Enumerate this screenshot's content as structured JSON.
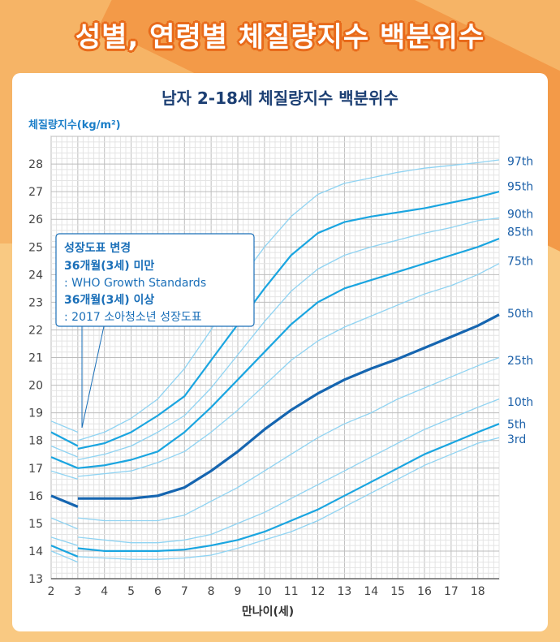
{
  "page_title": "성별, 연령별 체질량지수 백분위수",
  "colors": {
    "light": "#8fd3f2",
    "mid": "#1aa5e0",
    "dark": "#1565b0"
  },
  "note": {
    "title": "성장도표 변경",
    "line1": "36개월(3세) 미만",
    "line2": ": WHO Growth Standards",
    "line3": "36개월(3세) 이상",
    "line4": ": 2017 소아청소년 성장도표"
  },
  "chart_data": {
    "type": "line",
    "title": "남자 2-18세 체질량지수 백분위수",
    "ylabel": "체질량지수(kg/m²)",
    "xlabel": "만나이(세)",
    "xlim": [
      2,
      18.8
    ],
    "ylim": [
      13,
      29
    ],
    "grid": true,
    "x_ticks": [
      "2",
      "3",
      "4",
      "5",
      "6",
      "7",
      "8",
      "9",
      "10",
      "11",
      "12",
      "13",
      "14",
      "15",
      "16",
      "17",
      "18"
    ],
    "y_ticks": [
      "13",
      "14",
      "15",
      "16",
      "17",
      "18",
      "19",
      "20",
      "21",
      "22",
      "23",
      "24",
      "25",
      "26",
      "27",
      "28"
    ],
    "series_before_3y": [
      {
        "name": "97th",
        "style": "light",
        "x": [
          2,
          3
        ],
        "y": [
          18.7,
          18.3
        ]
      },
      {
        "name": "95th",
        "style": "mid",
        "x": [
          2,
          3
        ],
        "y": [
          18.3,
          17.8
        ]
      },
      {
        "name": "90th",
        "style": "light",
        "x": [
          2,
          3
        ],
        "y": [
          17.8,
          17.4
        ]
      },
      {
        "name": "85th",
        "style": "mid",
        "x": [
          2,
          3
        ],
        "y": [
          17.4,
          17.0
        ]
      },
      {
        "name": "75th",
        "style": "light",
        "x": [
          2,
          3
        ],
        "y": [
          16.9,
          16.6
        ]
      },
      {
        "name": "50th",
        "style": "dark",
        "x": [
          2,
          3
        ],
        "y": [
          16.0,
          15.6
        ]
      },
      {
        "name": "25th",
        "style": "light",
        "x": [
          2,
          3
        ],
        "y": [
          15.2,
          14.8
        ]
      },
      {
        "name": "10th",
        "style": "light",
        "x": [
          2,
          3
        ],
        "y": [
          14.5,
          14.2
        ]
      },
      {
        "name": "5th",
        "style": "mid",
        "x": [
          2,
          3
        ],
        "y": [
          14.2,
          13.8
        ]
      },
      {
        "name": "3rd",
        "style": "light",
        "x": [
          2,
          3
        ],
        "y": [
          14.0,
          13.6
        ]
      }
    ],
    "series": [
      {
        "name": "97th",
        "style": "light",
        "x": [
          3,
          4,
          5,
          6,
          7,
          8,
          9,
          10,
          11,
          12,
          13,
          14,
          15,
          16,
          17,
          18,
          18.8
        ],
        "y": [
          18.0,
          18.3,
          18.8,
          19.5,
          20.6,
          22.0,
          23.7,
          25.0,
          26.1,
          26.9,
          27.3,
          27.5,
          27.7,
          27.85,
          27.95,
          28.05,
          28.15
        ]
      },
      {
        "name": "95th",
        "style": "mid",
        "x": [
          3,
          4,
          5,
          6,
          7,
          8,
          9,
          10,
          11,
          12,
          13,
          14,
          15,
          16,
          17,
          18,
          18.8
        ],
        "y": [
          17.7,
          17.9,
          18.3,
          18.9,
          19.6,
          20.9,
          22.2,
          23.5,
          24.7,
          25.5,
          25.9,
          26.1,
          26.25,
          26.4,
          26.6,
          26.8,
          27.0
        ]
      },
      {
        "name": "90th",
        "style": "light",
        "x": [
          3,
          4,
          5,
          6,
          7,
          8,
          9,
          10,
          11,
          12,
          13,
          14,
          15,
          16,
          17,
          18,
          18.8
        ],
        "y": [
          17.3,
          17.5,
          17.8,
          18.3,
          18.9,
          19.9,
          21.1,
          22.3,
          23.4,
          24.2,
          24.7,
          25.0,
          25.25,
          25.5,
          25.7,
          25.95,
          26.05
        ]
      },
      {
        "name": "85th",
        "style": "mid",
        "x": [
          3,
          4,
          5,
          6,
          7,
          8,
          9,
          10,
          11,
          12,
          13,
          14,
          15,
          16,
          17,
          18,
          18.8
        ],
        "y": [
          17.0,
          17.1,
          17.3,
          17.6,
          18.3,
          19.2,
          20.2,
          21.2,
          22.2,
          23.0,
          23.5,
          23.8,
          24.1,
          24.4,
          24.7,
          25.0,
          25.3
        ]
      },
      {
        "name": "75th",
        "style": "light",
        "x": [
          3,
          4,
          5,
          6,
          7,
          8,
          9,
          10,
          11,
          12,
          13,
          14,
          15,
          16,
          17,
          18,
          18.8
        ],
        "y": [
          16.7,
          16.8,
          16.9,
          17.2,
          17.6,
          18.3,
          19.1,
          20.0,
          20.9,
          21.6,
          22.1,
          22.5,
          22.9,
          23.3,
          23.6,
          24.0,
          24.4
        ]
      },
      {
        "name": "50th",
        "style": "dark",
        "x": [
          3,
          4,
          5,
          6,
          7,
          8,
          9,
          10,
          11,
          12,
          13,
          14,
          15,
          16,
          17,
          18,
          18.8
        ],
        "y": [
          15.9,
          15.9,
          15.9,
          16.0,
          16.3,
          16.9,
          17.6,
          18.4,
          19.1,
          19.7,
          20.2,
          20.6,
          20.95,
          21.35,
          21.75,
          22.15,
          22.55
        ]
      },
      {
        "name": "25th",
        "style": "light",
        "x": [
          3,
          4,
          5,
          6,
          7,
          8,
          9,
          10,
          11,
          12,
          13,
          14,
          15,
          16,
          17,
          18,
          18.8
        ],
        "y": [
          15.2,
          15.1,
          15.1,
          15.1,
          15.3,
          15.8,
          16.3,
          16.9,
          17.5,
          18.1,
          18.6,
          19.0,
          19.5,
          19.9,
          20.3,
          20.7,
          21.0
        ]
      },
      {
        "name": "10th",
        "style": "light",
        "x": [
          3,
          4,
          5,
          6,
          7,
          8,
          9,
          10,
          11,
          12,
          13,
          14,
          15,
          16,
          17,
          18,
          18.8
        ],
        "y": [
          14.5,
          14.4,
          14.3,
          14.3,
          14.4,
          14.6,
          15.0,
          15.4,
          15.9,
          16.4,
          16.9,
          17.4,
          17.9,
          18.4,
          18.8,
          19.2,
          19.5
        ]
      },
      {
        "name": "5th",
        "style": "mid",
        "x": [
          3,
          4,
          5,
          6,
          7,
          8,
          9,
          10,
          11,
          12,
          13,
          14,
          15,
          16,
          17,
          18,
          18.8
        ],
        "y": [
          14.1,
          14.0,
          14.0,
          14.0,
          14.05,
          14.2,
          14.4,
          14.7,
          15.1,
          15.5,
          16.0,
          16.5,
          17.0,
          17.5,
          17.9,
          18.3,
          18.6
        ]
      },
      {
        "name": "3rd",
        "style": "light",
        "x": [
          3,
          4,
          5,
          6,
          7,
          8,
          9,
          10,
          11,
          12,
          13,
          14,
          15,
          16,
          17,
          18,
          18.8
        ],
        "y": [
          13.8,
          13.75,
          13.7,
          13.7,
          13.75,
          13.85,
          14.1,
          14.4,
          14.7,
          15.1,
          15.6,
          16.1,
          16.6,
          17.1,
          17.5,
          17.9,
          18.1
        ]
      }
    ]
  }
}
